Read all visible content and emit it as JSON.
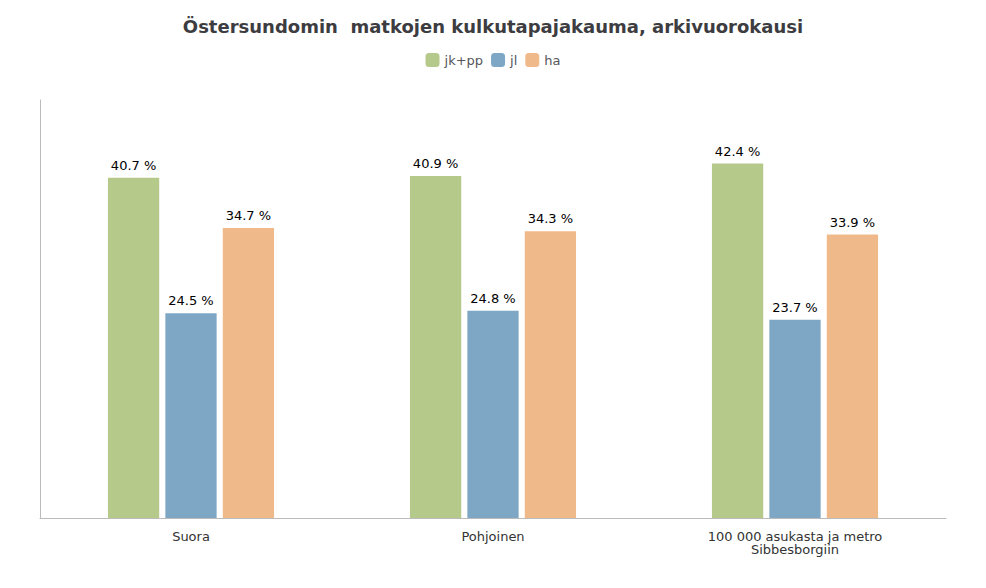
{
  "chart_data": {
    "type": "bar",
    "title": "Östersundomin  matkojen kulkutapajakauma, arkivuorokausi",
    "categories": [
      "Suora",
      "Pohjoinen",
      "100 000 asukasta ja metro\nSibbesborgiin"
    ],
    "series": [
      {
        "name": "jk+pp",
        "color": "#b5c98a",
        "values": [
          40.7,
          40.9,
          42.4
        ],
        "value_labels": [
          "40.7 %",
          "40.9 %",
          "42.4 %"
        ]
      },
      {
        "name": "jl",
        "color": "#7da7c4",
        "values": [
          24.5,
          24.8,
          23.7
        ],
        "value_labels": [
          "24.5 %",
          "24.8 %",
          "23.7 %"
        ]
      },
      {
        "name": "ha",
        "color": "#f0b98a",
        "values": [
          34.7,
          34.3,
          33.9
        ],
        "value_labels": [
          "34.7 %",
          "34.3 %",
          "33.9 %"
        ]
      }
    ],
    "ylim": [
      0,
      50
    ],
    "grid": false,
    "legend": "top",
    "data_labels": true,
    "tick_labels": "x"
  }
}
